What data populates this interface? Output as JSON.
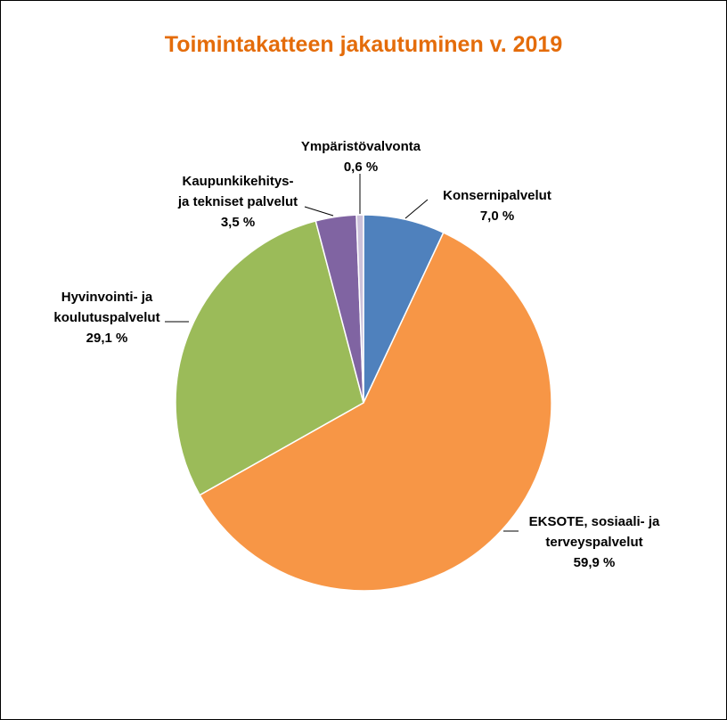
{
  "chart_data": {
    "type": "pie",
    "title": "Toimintakatteen jakautuminen v. 2019",
    "slices": [
      {
        "label_lines": [
          "Konsernipalvelut"
        ],
        "value": 7.0,
        "value_label": "7,0 %",
        "color": "#4F81BD"
      },
      {
        "label_lines": [
          "EKSOTE, sosiaali- ja",
          "terveyspalvelut"
        ],
        "value": 59.9,
        "value_label": "59,9 %",
        "color": "#F79646"
      },
      {
        "label_lines": [
          "Hyvinvointi- ja",
          "koulutuspalvelut"
        ],
        "value": 29.1,
        "value_label": "29,1 %",
        "color": "#9BBB59"
      },
      {
        "label_lines": [
          "Kaupunkikehitys-",
          "ja tekniset palvelut"
        ],
        "value": 3.5,
        "value_label": "3,5 %",
        "color": "#8064A2"
      },
      {
        "label_lines": [
          "Ympäristövalvonta"
        ],
        "value": 0.6,
        "value_label": "0,6 %",
        "color": "#CCC1DA"
      }
    ]
  }
}
